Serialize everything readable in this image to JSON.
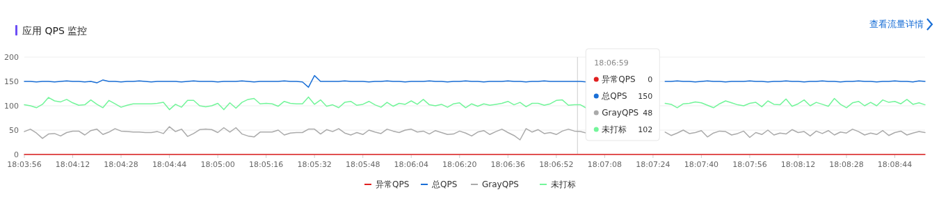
{
  "chart_data": {
    "type": "line",
    "title": "应用 QPS 监控",
    "annotations": [
      "查看流量详情",
      "18:06:59",
      "0",
      "150",
      "48",
      "102"
    ],
    "categories": [
      "18:03:56",
      null,
      null,
      null,
      null,
      null,
      null,
      null,
      "18:04:12",
      null,
      null,
      null,
      null,
      null,
      null,
      null,
      "18:04:28",
      null,
      null,
      null,
      null,
      null,
      null,
      null,
      "18:04:44",
      null,
      null,
      null,
      null,
      null,
      null,
      null,
      "18:05:00",
      null,
      null,
      null,
      null,
      null,
      null,
      null,
      "18:05:16",
      null,
      null,
      null,
      null,
      null,
      null,
      null,
      "18:05:32",
      null,
      null,
      null,
      null,
      null,
      null,
      null,
      "18:05:48",
      null,
      null,
      null,
      null,
      null,
      null,
      null,
      "18:06:04",
      null,
      null,
      null,
      null,
      null,
      null,
      null,
      "18:06:20",
      null,
      null,
      null,
      null,
      null,
      null,
      null,
      "18:06:36",
      null,
      null,
      null,
      null,
      null,
      null,
      null,
      "18:06:52",
      null,
      null,
      null,
      null,
      null,
      null,
      null,
      "18:07:08",
      null,
      null,
      null,
      null,
      null,
      null,
      null,
      "18:07:24",
      null,
      null,
      null,
      null,
      null,
      null,
      null,
      "18:07:40",
      null,
      null,
      null,
      null,
      null,
      null,
      null,
      "18:07:56",
      null,
      null,
      null,
      null,
      null,
      null,
      null,
      "18:08:12",
      null,
      null,
      null,
      null,
      null,
      null,
      null,
      "18:08:28",
      null,
      null,
      null,
      null,
      null,
      null,
      null,
      "18:08:44",
      null,
      null,
      null,
      null,
      null
    ],
    "ylim": [
      0,
      200
    ],
    "yticks": [
      0,
      50,
      100,
      150,
      200
    ],
    "grid": "y",
    "legend": "bottom",
    "marker": "none",
    "line_style": "solid",
    "series": [
      {
        "name": "异常QPS",
        "color": "#e02020",
        "values": [
          0,
          0,
          0,
          0,
          0,
          0,
          0,
          0,
          0,
          0,
          0,
          0,
          0,
          0,
          0,
          0,
          0,
          0,
          0,
          0,
          0,
          0,
          0,
          0,
          0,
          0,
          0,
          0,
          0,
          0,
          0,
          0,
          0,
          0,
          0,
          0,
          0,
          0,
          0,
          0,
          0,
          0,
          0,
          0,
          0,
          0,
          0,
          0,
          0,
          0,
          0,
          0,
          0,
          0,
          0,
          0,
          0,
          0,
          0,
          0,
          0,
          0,
          0,
          0,
          0,
          0,
          0,
          0,
          0,
          0,
          0,
          0,
          0,
          0,
          0,
          0,
          0,
          0,
          0,
          0,
          0,
          0,
          0,
          0,
          0,
          0,
          0,
          0,
          0,
          0,
          0,
          0,
          0,
          0,
          0,
          0,
          0,
          0,
          0,
          0,
          0,
          0,
          0,
          0,
          0,
          0,
          0,
          0,
          0,
          0,
          0,
          0,
          0,
          0,
          0,
          0,
          0,
          0,
          0,
          0,
          0,
          0,
          0,
          0,
          0,
          0,
          0,
          0,
          0,
          0,
          0,
          0,
          0,
          0,
          0,
          0,
          0,
          0,
          0,
          0,
          0,
          0,
          0,
          0,
          0,
          0,
          0,
          0,
          0,
          0
        ]
      },
      {
        "name": "总QPS",
        "color": "#1a6fd6",
        "values": [
          150,
          150,
          149,
          150,
          150,
          149,
          150,
          151,
          150,
          150,
          149,
          150,
          147,
          153,
          150,
          150,
          149,
          150,
          150,
          151,
          150,
          149,
          150,
          150,
          150,
          150,
          149,
          150,
          151,
          150,
          150,
          150,
          149,
          150,
          150,
          150,
          151,
          150,
          149,
          150,
          150,
          150,
          150,
          151,
          150,
          150,
          149,
          138,
          162,
          150,
          150,
          150,
          150,
          151,
          150,
          150,
          150,
          149,
          150,
          150,
          151,
          150,
          150,
          149,
          150,
          150,
          150,
          151,
          150,
          150,
          149,
          150,
          150,
          151,
          150,
          150,
          149,
          150,
          150,
          150,
          151,
          150,
          150,
          149,
          150,
          150,
          151,
          150,
          150,
          150,
          150,
          150,
          150,
          149,
          null,
          null,
          null,
          null,
          null,
          null,
          null,
          null,
          null,
          null,
          null,
          null,
          150,
          150,
          151,
          150,
          150,
          149,
          150,
          151,
          150,
          150,
          149,
          150,
          150,
          150,
          151,
          150,
          150,
          149,
          150,
          150,
          151,
          150,
          150,
          149,
          150,
          150,
          151,
          150,
          150,
          149,
          150,
          150,
          151,
          150,
          150,
          149,
          150,
          150,
          151,
          150,
          150,
          149,
          151,
          150
        ]
      },
      {
        "name": "GrayQPS",
        "color": "#aaaaaa",
        "values": [
          47,
          52,
          44,
          33,
          42,
          43,
          38,
          45,
          48,
          48,
          40,
          49,
          52,
          41,
          46,
          53,
          48,
          47,
          46,
          46,
          45,
          45,
          47,
          43,
          57,
          47,
          52,
          37,
          43,
          51,
          52,
          51,
          45,
          55,
          46,
          55,
          42,
          38,
          36,
          46,
          46,
          46,
          50,
          40,
          44,
          45,
          45,
          52,
          52,
          42,
          51,
          47,
          53,
          44,
          40,
          45,
          41,
          50,
          46,
          43,
          52,
          48,
          45,
          50,
          52,
          46,
          48,
          42,
          49,
          45,
          41,
          42,
          48,
          44,
          38,
          46,
          49,
          41,
          47,
          52,
          45,
          39,
          30,
          53,
          46,
          51,
          43,
          45,
          41,
          48,
          52,
          48,
          47,
          44,
          null,
          null,
          null,
          null,
          null,
          null,
          null,
          null,
          null,
          null,
          null,
          null,
          46,
          39,
          44,
          50,
          43,
          45,
          49,
          36,
          44,
          48,
          47,
          40,
          43,
          48,
          35,
          45,
          41,
          50,
          40,
          44,
          42,
          51,
          45,
          47,
          38,
          48,
          43,
          49,
          40,
          46,
          44,
          52,
          47,
          40,
          44,
          41,
          49,
          39,
          45,
          48,
          40,
          44,
          47,
          45
        ]
      },
      {
        "name": "未打标",
        "color": "#73f59a",
        "values": [
          102,
          100,
          96,
          103,
          117,
          110,
          108,
          113,
          106,
          101,
          102,
          112,
          103,
          96,
          111,
          104,
          97,
          101,
          104,
          104,
          104,
          104,
          105,
          107,
          92,
          103,
          97,
          111,
          111,
          100,
          98,
          100,
          105,
          92,
          106,
          95,
          107,
          113,
          115,
          104,
          105,
          104,
          99,
          109,
          105,
          104,
          104,
          118,
          103,
          112,
          99,
          102,
          96,
          107,
          109,
          101,
          103,
          109,
          102,
          97,
          107,
          99,
          105,
          103,
          110,
          103,
          113,
          102,
          100,
          103,
          97,
          104,
          106,
          96,
          104,
          99,
          104,
          101,
          103,
          105,
          109,
          102,
          107,
          98,
          105,
          105,
          101,
          104,
          111,
          112,
          101,
          102,
          102,
          95,
          null,
          null,
          null,
          null,
          null,
          null,
          null,
          null,
          null,
          null,
          null,
          null,
          105,
          103,
          96,
          104,
          105,
          108,
          106,
          101,
          96,
          104,
          110,
          106,
          102,
          100,
          105,
          107,
          98,
          110,
          103,
          102,
          114,
          99,
          104,
          112,
          100,
          107,
          103,
          99,
          115,
          103,
          96,
          106,
          109,
          100,
          107,
          100,
          112,
          107,
          109,
          104,
          113,
          103,
          106,
          102
        ]
      }
    ]
  }
}
